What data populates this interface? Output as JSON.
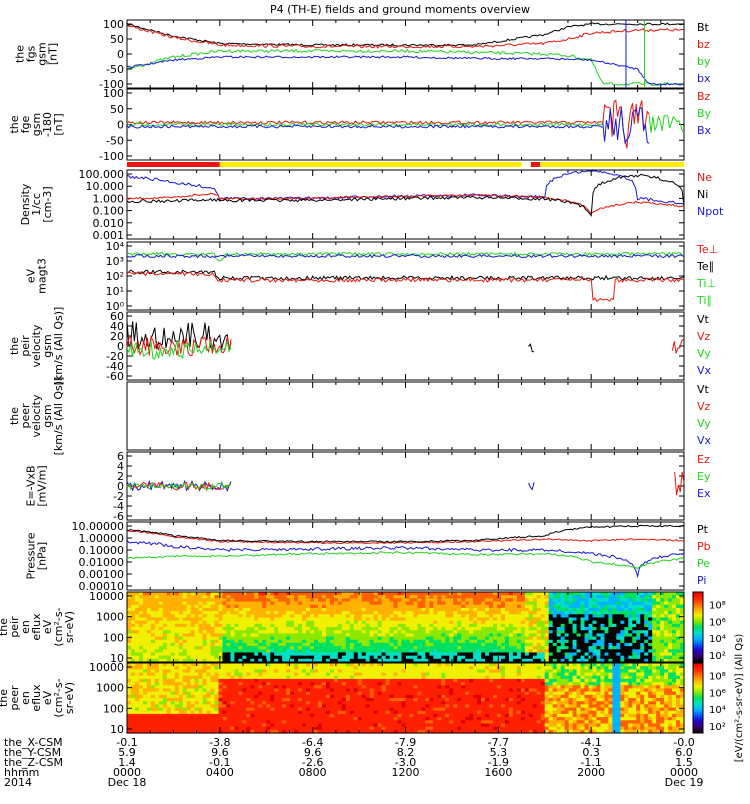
{
  "title": "P4 (TH-E) fields and ground moments overview",
  "colors": {
    "black": "#000000",
    "red": "#e8160e",
    "green": "#22d41c",
    "blue": "#1518d6",
    "yellow": "#ffee00",
    "frame": "#000000"
  },
  "panels": [
    {
      "id": "fgs",
      "ylabel": [
        "the",
        "fgs",
        "gsm",
        "[nT]"
      ],
      "ticks": [
        "100",
        "50",
        "0",
        "-50",
        "-100"
      ],
      "legend": [
        {
          "t": "Bt",
          "c": "black"
        },
        {
          "t": "bz",
          "c": "red"
        },
        {
          "t": "by",
          "c": "green"
        },
        {
          "t": "bx",
          "c": "blue"
        }
      ]
    },
    {
      "id": "fge",
      "ylabel": [
        "the",
        "fge",
        "gsm",
        "-180",
        "[nT]"
      ],
      "ticks": [
        "100",
        "50",
        "0",
        "-50",
        "-100"
      ],
      "legend": [
        {
          "t": "Bz",
          "c": "red"
        },
        {
          "t": "By",
          "c": "green"
        },
        {
          "t": "Bx",
          "c": "blue"
        }
      ]
    },
    {
      "id": "density",
      "ylabel": [
        "Density",
        "1/cc",
        "[cm-3]"
      ],
      "ticks": [
        "100.000",
        "10.000",
        "1.000",
        "0.100",
        "0.010",
        "0.001"
      ],
      "legend": [
        {
          "t": "Ne",
          "c": "red"
        },
        {
          "t": "Ni",
          "c": "black"
        },
        {
          "t": "Npot",
          "c": "blue"
        }
      ]
    },
    {
      "id": "temp",
      "ylabel": [
        "eV",
        "magt3"
      ],
      "ticks": [
        "10⁴",
        "10³",
        "10²",
        "10¹",
        "10⁰"
      ],
      "legend": [
        {
          "t": "Te⊥",
          "c": "red"
        },
        {
          "t": "Te∥",
          "c": "black"
        },
        {
          "t": "Ti⊥",
          "c": "green"
        },
        {
          "t": "Ti∥",
          "c": "green"
        }
      ]
    },
    {
      "id": "peirvel",
      "ylabel": [
        "the",
        "peir",
        "velocity",
        "gsm",
        "[km/s (All Qs)]"
      ],
      "ticks": [
        "60",
        "40",
        "20",
        "0",
        "-20",
        "-40",
        "-60"
      ],
      "legend": [
        {
          "t": "Vt",
          "c": "black"
        },
        {
          "t": "Vz",
          "c": "red"
        },
        {
          "t": "Vy",
          "c": "green"
        },
        {
          "t": "Vx",
          "c": "blue"
        }
      ]
    },
    {
      "id": "peervel",
      "ylabel": [
        "the",
        "peer",
        "velocity",
        "gsm",
        "[km/s (All Qs)]"
      ],
      "ticks": [],
      "legend": [
        {
          "t": "Vt",
          "c": "black"
        },
        {
          "t": "Vz",
          "c": "red"
        },
        {
          "t": "Vy",
          "c": "green"
        },
        {
          "t": "Vx",
          "c": "blue"
        }
      ]
    },
    {
      "id": "efield",
      "ylabel": [
        "E=-VxB",
        "[mV/m]"
      ],
      "ticks": [
        "6",
        "4",
        "2",
        "0",
        "-2",
        "-4",
        "-6"
      ],
      "legend": [
        {
          "t": "Ez",
          "c": "red"
        },
        {
          "t": "Ey",
          "c": "green"
        },
        {
          "t": "Ex",
          "c": "blue"
        }
      ]
    },
    {
      "id": "pressure",
      "ylabel": [
        "Pressure",
        "[nPa]"
      ],
      "ticks": [
        "10.00000",
        "1.00000",
        "0.10000",
        "0.01000",
        "0.00100",
        "0.00010"
      ],
      "legend": [
        {
          "t": "Pt",
          "c": "black"
        },
        {
          "t": "Pb",
          "c": "red"
        },
        {
          "t": "Pe",
          "c": "green"
        },
        {
          "t": "Pi",
          "c": "blue"
        }
      ]
    },
    {
      "id": "peirspec",
      "ylabel": [
        "the",
        "peir",
        "en",
        "eflux",
        "eV",
        "(cm²-s-",
        "sr-eV)"
      ],
      "ticks": [
        "10000",
        "1000",
        "100",
        "10"
      ],
      "legend": []
    },
    {
      "id": "peerspec",
      "ylabel": [
        "the",
        "peer",
        "en",
        "eflux",
        "eV",
        "(cm²-s-",
        "sr-eV)"
      ],
      "ticks": [
        "10000",
        "1000",
        "100",
        "10"
      ],
      "legend": []
    }
  ],
  "colorbar": {
    "ticks": [
      "10⁸",
      "10⁶",
      "10⁴",
      "10²"
    ],
    "ticks2": [
      "10⁸",
      "10⁶",
      "10⁴",
      "10²"
    ],
    "label": "[eV/(cm²-s-sr-eV)]",
    "label2": "(All Qs)"
  },
  "xaxis": {
    "rows": [
      {
        "label": "the_X-CSM",
        "values": [
          "-0.1",
          "-3.8",
          "-6.4",
          "-7.9",
          "-7.7",
          "-4.1",
          "-0.0"
        ]
      },
      {
        "label": "the_Y-CSM",
        "values": [
          "5.9",
          "9.6",
          "9.6",
          "8.2",
          "5.3",
          "0.3",
          "6.0"
        ]
      },
      {
        "label": "the_Z-CSM",
        "values": [
          "1.4",
          "-0.1",
          "-2.6",
          "-3.0",
          "-1.9",
          "-1.1",
          "1.5"
        ]
      },
      {
        "label": "hhmm",
        "values": [
          "0000",
          "0400",
          "0800",
          "1200",
          "1600",
          "2000",
          "0000"
        ]
      },
      {
        "label": "2014",
        "values": [
          "Dec 18",
          "",
          "",
          "",
          "",
          "",
          "Dec 19"
        ]
      }
    ]
  },
  "chart_data": {
    "type": "line",
    "title": "P4 (TH-E) fields and ground moments overview",
    "x_range": [
      "2014-12-18 00:00",
      "2014-12-19 00:00"
    ],
    "x_ticks": [
      "0000",
      "0400",
      "0800",
      "1200",
      "1600",
      "2000",
      "0000"
    ],
    "series": [
      {
        "name": "Bt",
        "panel": "fgs",
        "x_hours": [
          0,
          2,
          4,
          8,
          12,
          15,
          18,
          19,
          20,
          21,
          22,
          24
        ],
        "values": [
          100,
          60,
          35,
          30,
          30,
          30,
          65,
          90,
          100,
          100,
          100,
          100
        ]
      },
      {
        "name": "bz",
        "panel": "fgs",
        "x_hours": [
          0,
          2,
          4,
          8,
          12,
          15,
          18,
          19,
          20,
          22,
          24
        ],
        "values": [
          95,
          55,
          30,
          25,
          25,
          25,
          35,
          50,
          70,
          80,
          80
        ]
      },
      {
        "name": "by",
        "panel": "fgs",
        "x_hours": [
          0,
          2,
          4,
          8,
          12,
          15,
          18,
          19,
          20,
          20.5,
          24
        ],
        "values": [
          -50,
          -10,
          10,
          10,
          10,
          5,
          0,
          -5,
          -20,
          -100,
          -100
        ]
      },
      {
        "name": "bx",
        "panel": "fgs",
        "x_hours": [
          0,
          2,
          4,
          8,
          12,
          15,
          18,
          20,
          22,
          22.5,
          24
        ],
        "values": [
          -45,
          -20,
          -10,
          -10,
          -10,
          -15,
          -15,
          -20,
          -50,
          -100,
          -100
        ]
      },
      {
        "name": "Ne",
        "panel": "density",
        "x_hours": [
          0,
          2,
          3.8,
          4,
          8,
          12,
          15,
          18,
          20,
          22,
          24
        ],
        "values": [
          1,
          1.2,
          2.5,
          1.0,
          1.0,
          1.5,
          1.8,
          1.2,
          0.05,
          0.5,
          0.2
        ]
      },
      {
        "name": "Ni",
        "panel": "density",
        "x_hours": [
          0,
          2,
          3.8,
          4,
          8,
          12,
          15,
          18,
          20,
          22,
          24
        ],
        "values": [
          0.6,
          0.6,
          0.8,
          0.7,
          0.7,
          1.0,
          1.2,
          0.9,
          0.04,
          80,
          0.2
        ]
      },
      {
        "name": "Npot",
        "panel": "density",
        "x_hours": [
          0,
          2,
          3.8,
          4,
          8,
          12,
          15,
          18,
          20,
          22,
          24
        ],
        "values": [
          60,
          20,
          5,
          1.0,
          1.0,
          1.5,
          1.8,
          1.2,
          200,
          1.0,
          0.3
        ]
      },
      {
        "name": "Pt",
        "panel": "pressure",
        "x_hours": [
          0,
          2,
          4,
          8,
          12,
          15,
          18,
          20,
          22,
          24
        ],
        "values": [
          5,
          1.5,
          0.6,
          0.5,
          0.5,
          0.6,
          1.5,
          8,
          10,
          10
        ]
      },
      {
        "name": "Pb",
        "panel": "pressure",
        "x_hours": [
          0,
          2,
          4,
          8,
          12,
          15,
          18,
          20,
          22,
          24
        ],
        "values": [
          4,
          1.2,
          0.5,
          0.4,
          0.4,
          0.5,
          0.8,
          0.6,
          0.8,
          0.6
        ]
      },
      {
        "name": "Pe",
        "panel": "pressure",
        "x_hours": [
          0,
          2,
          4,
          8,
          12,
          15,
          18,
          20,
          22,
          24
        ],
        "values": [
          0.02,
          0.03,
          0.03,
          0.05,
          0.06,
          0.04,
          0.05,
          0.01,
          0.003,
          0.02
        ]
      },
      {
        "name": "Pi",
        "panel": "pressure",
        "x_hours": [
          0,
          2,
          4,
          8,
          12,
          15,
          18,
          20,
          22,
          24
        ],
        "values": [
          0.5,
          0.2,
          0.1,
          0.12,
          0.15,
          0.1,
          0.1,
          0.05,
          0.0005,
          0.05
        ]
      }
    ]
  }
}
